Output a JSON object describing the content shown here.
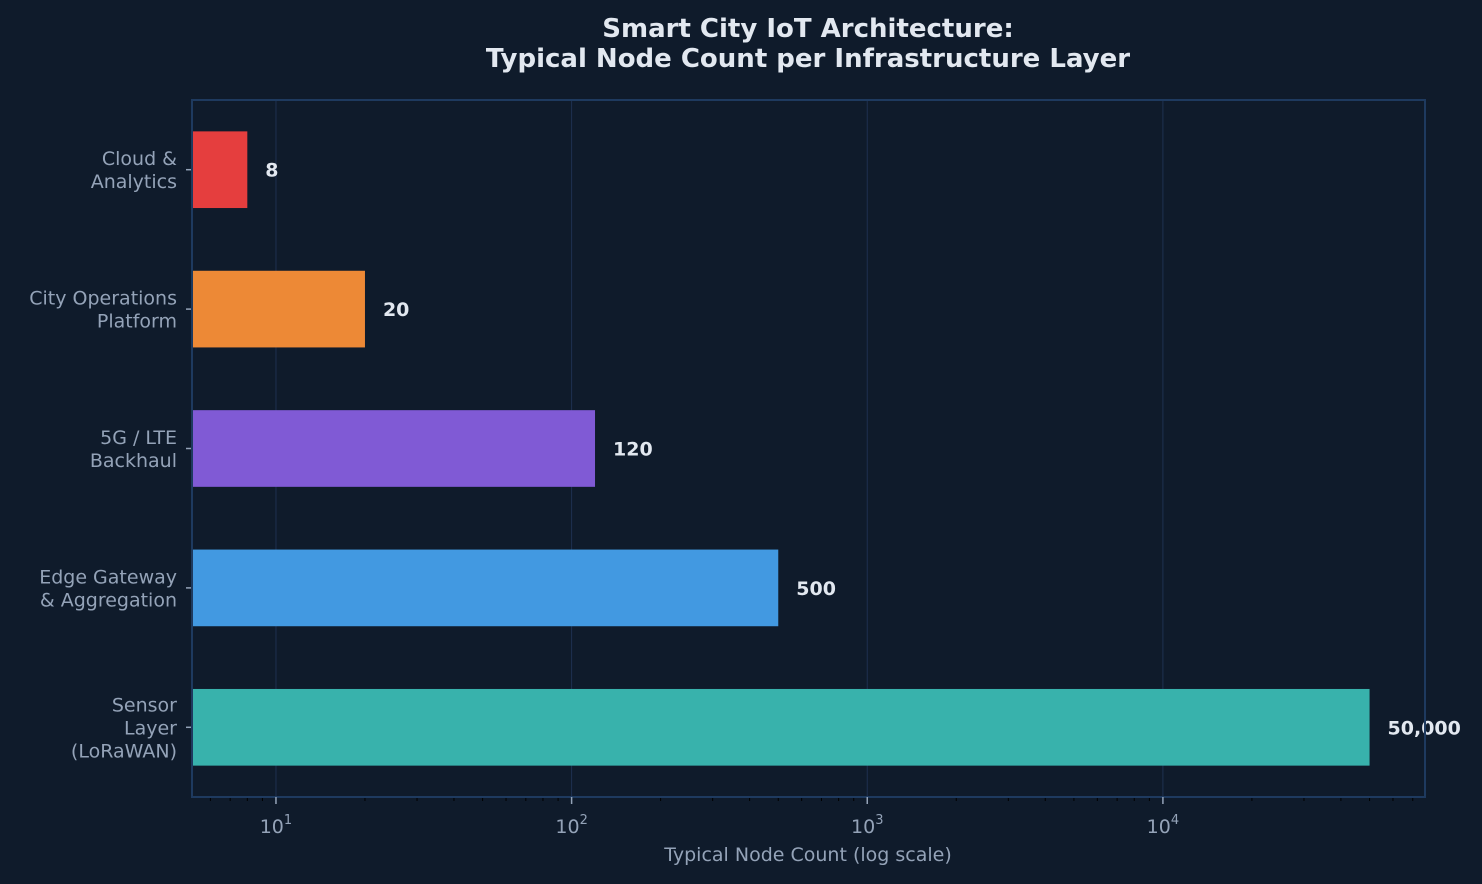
{
  "chart_data": {
    "type": "bar",
    "orientation": "horizontal",
    "title": "Smart City IoT Architecture:\nTypical Node Count per Infrastructure Layer",
    "xlabel": "Typical Node Count (log scale)",
    "ylabel": "",
    "xscale": "log",
    "xlim": [
      5.2,
      77000
    ],
    "grid": "vertical major",
    "categories": [
      "Cloud &\nAnalytics",
      "City Operations\nPlatform",
      "5G / LTE\nBackhaul",
      "Edge Gateway\n& Aggregation",
      "Sensor\nLayer\n(LoRaWAN)"
    ],
    "values": [
      8,
      20,
      120,
      500,
      50000
    ],
    "data_labels": [
      "8",
      "20",
      "120",
      "500",
      "50,000"
    ],
    "colors": [
      "#e53e3e",
      "#ed8936",
      "#805ad5",
      "#4299e1",
      "#38b2ac"
    ],
    "x_ticks": [
      {
        "value": 10,
        "base": "10",
        "exp": "1"
      },
      {
        "value": 100,
        "base": "10",
        "exp": "2"
      },
      {
        "value": 1000,
        "base": "10",
        "exp": "3"
      },
      {
        "value": 10000,
        "base": "10",
        "exp": "4"
      }
    ]
  },
  "theme": {
    "background": "#0f1b2b",
    "text": "#e2e8f0",
    "muted": "#94a3b8",
    "spine": "#1e3a5f",
    "grid": "#1e3050"
  }
}
